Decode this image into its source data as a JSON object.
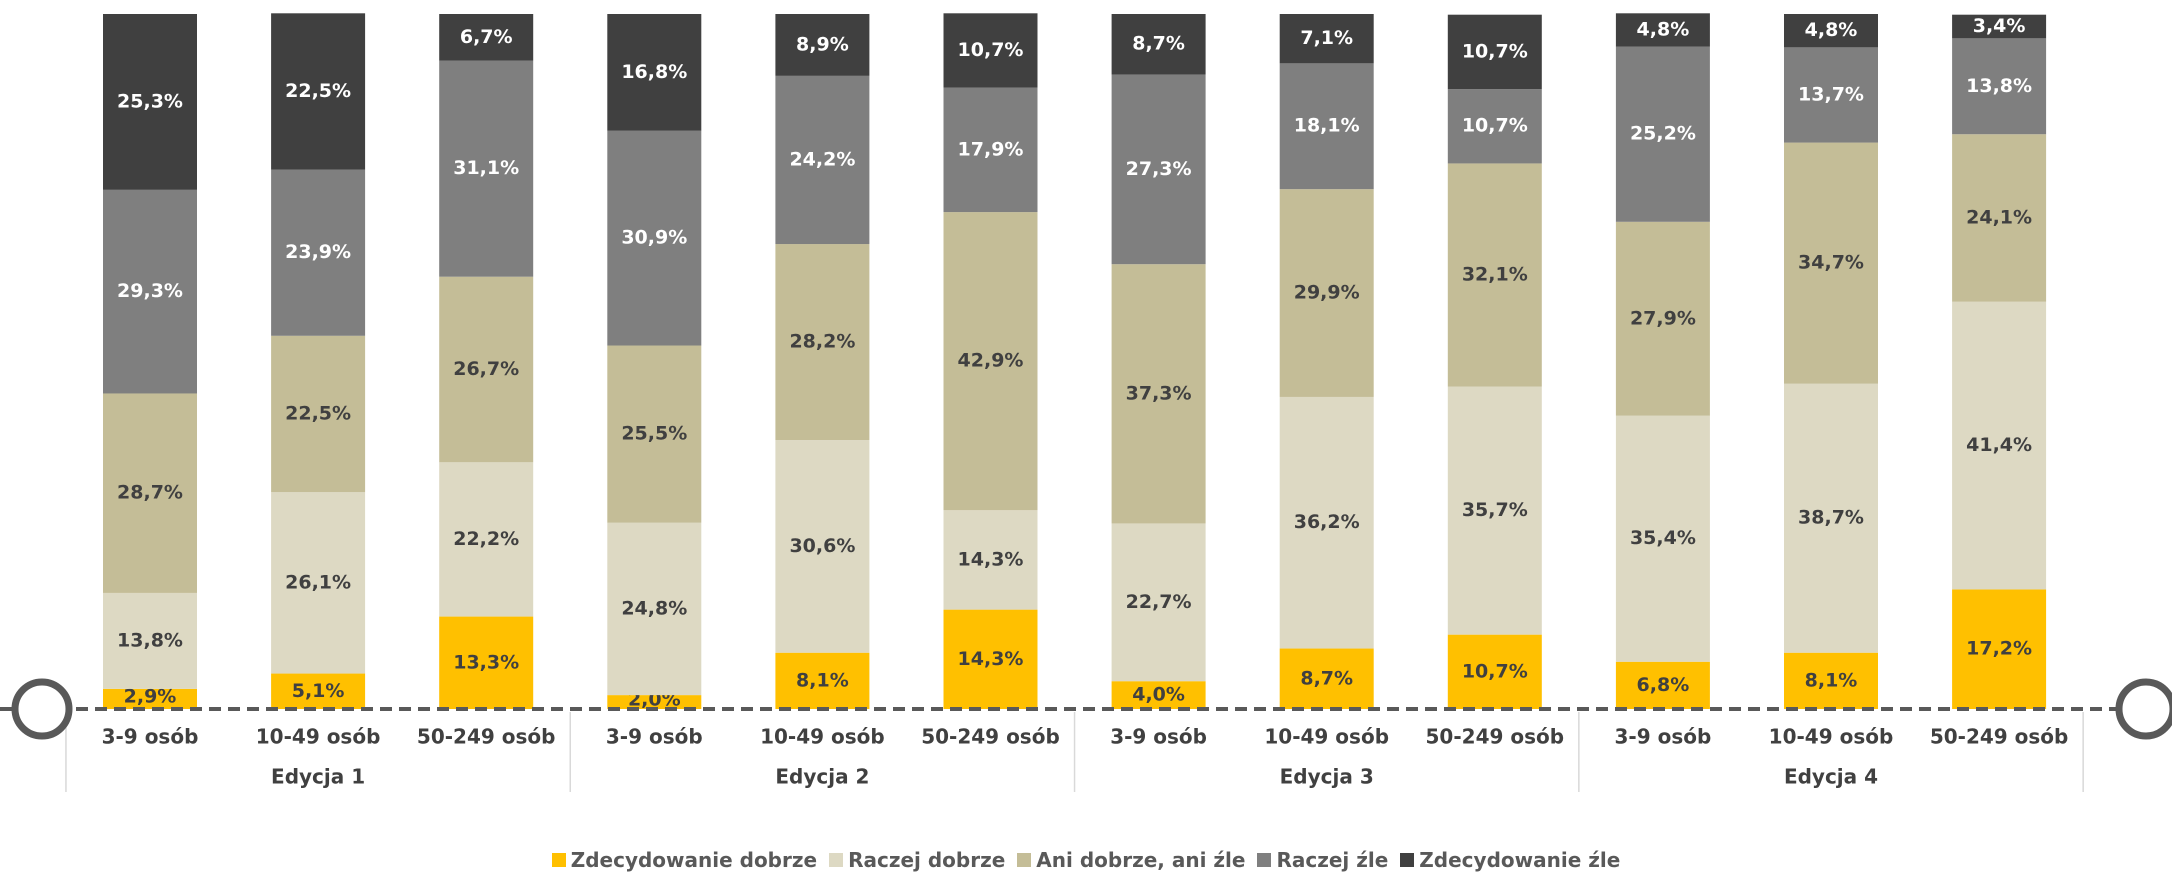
{
  "chart_data": {
    "type": "stacked_bar",
    "categories": [
      "3-9 osób",
      "10-49 osób",
      "50-249 osób",
      "3-9 osób",
      "10-49 osób",
      "50-249 osób",
      "3-9 osób",
      "10-49 osób",
      "50-249 osób",
      "3-9 osób",
      "10-49 osób",
      "50-249 osób"
    ],
    "groups": [
      "Edycja 1",
      "Edycja 2",
      "Edycja 3",
      "Edycja 4"
    ],
    "ylim": [
      0,
      100
    ],
    "series": [
      {
        "name": "Zdecydowanie dobrze",
        "color": "#ffc000",
        "values": [
          2.9,
          5.1,
          13.3,
          2.0,
          8.1,
          14.3,
          4.0,
          8.7,
          10.7,
          6.8,
          8.1,
          17.2
        ],
        "value_labels": [
          "2,9%",
          "5,1%",
          "13,3%",
          "2,0%",
          "8,1%",
          "14,3%",
          "4,0%",
          "8,7%",
          "10,7%",
          "6,8%",
          "8,1%",
          "17,2%"
        ]
      },
      {
        "name": "Raczej dobrze",
        "color": "#ddd9c3",
        "values": [
          13.8,
          26.1,
          22.2,
          24.8,
          30.6,
          14.3,
          22.7,
          36.2,
          35.7,
          35.4,
          38.7,
          41.4
        ],
        "value_labels": [
          "13,8%",
          "26,1%",
          "22,2%",
          "24,8%",
          "30,6%",
          "14,3%",
          "22,7%",
          "36,2%",
          "35,7%",
          "35,4%",
          "38,7%",
          "41,4%"
        ]
      },
      {
        "name": "Ani dobrze, ani źle",
        "color": "#c4bd97",
        "values": [
          28.7,
          22.5,
          26.7,
          25.5,
          28.2,
          42.9,
          37.3,
          29.9,
          32.1,
          27.9,
          34.7,
          24.1
        ],
        "value_labels": [
          "28,7%",
          "22,5%",
          "26,7%",
          "25,5%",
          "28,2%",
          "42,9%",
          "37,3%",
          "29,9%",
          "32,1%",
          "27,9%",
          "34,7%",
          "24,1%"
        ]
      },
      {
        "name": "Raczej źle",
        "color": "#7f7f7f",
        "values": [
          29.3,
          23.9,
          31.1,
          30.9,
          24.2,
          17.9,
          27.3,
          18.1,
          10.7,
          25.2,
          13.7,
          13.8
        ],
        "value_labels": [
          "29,3%",
          "23,9%",
          "31,1%",
          "30,9%",
          "24,2%",
          "17,9%",
          "27,3%",
          "18,1%",
          "10,7%",
          "25,2%",
          "13,7%",
          "13,8%"
        ]
      },
      {
        "name": "Zdecydowanie źle",
        "color": "#404040",
        "values": [
          25.3,
          22.5,
          6.7,
          16.8,
          8.9,
          10.7,
          8.7,
          7.1,
          10.7,
          4.8,
          4.8,
          3.4
        ],
        "value_labels": [
          "25,3%",
          "22,5%",
          "6,7%",
          "16,8%",
          "8,9%",
          "10,7%",
          "8,7%",
          "7,1%",
          "10,7%",
          "4,8%",
          "4,8%",
          "3,4%"
        ]
      }
    ]
  }
}
